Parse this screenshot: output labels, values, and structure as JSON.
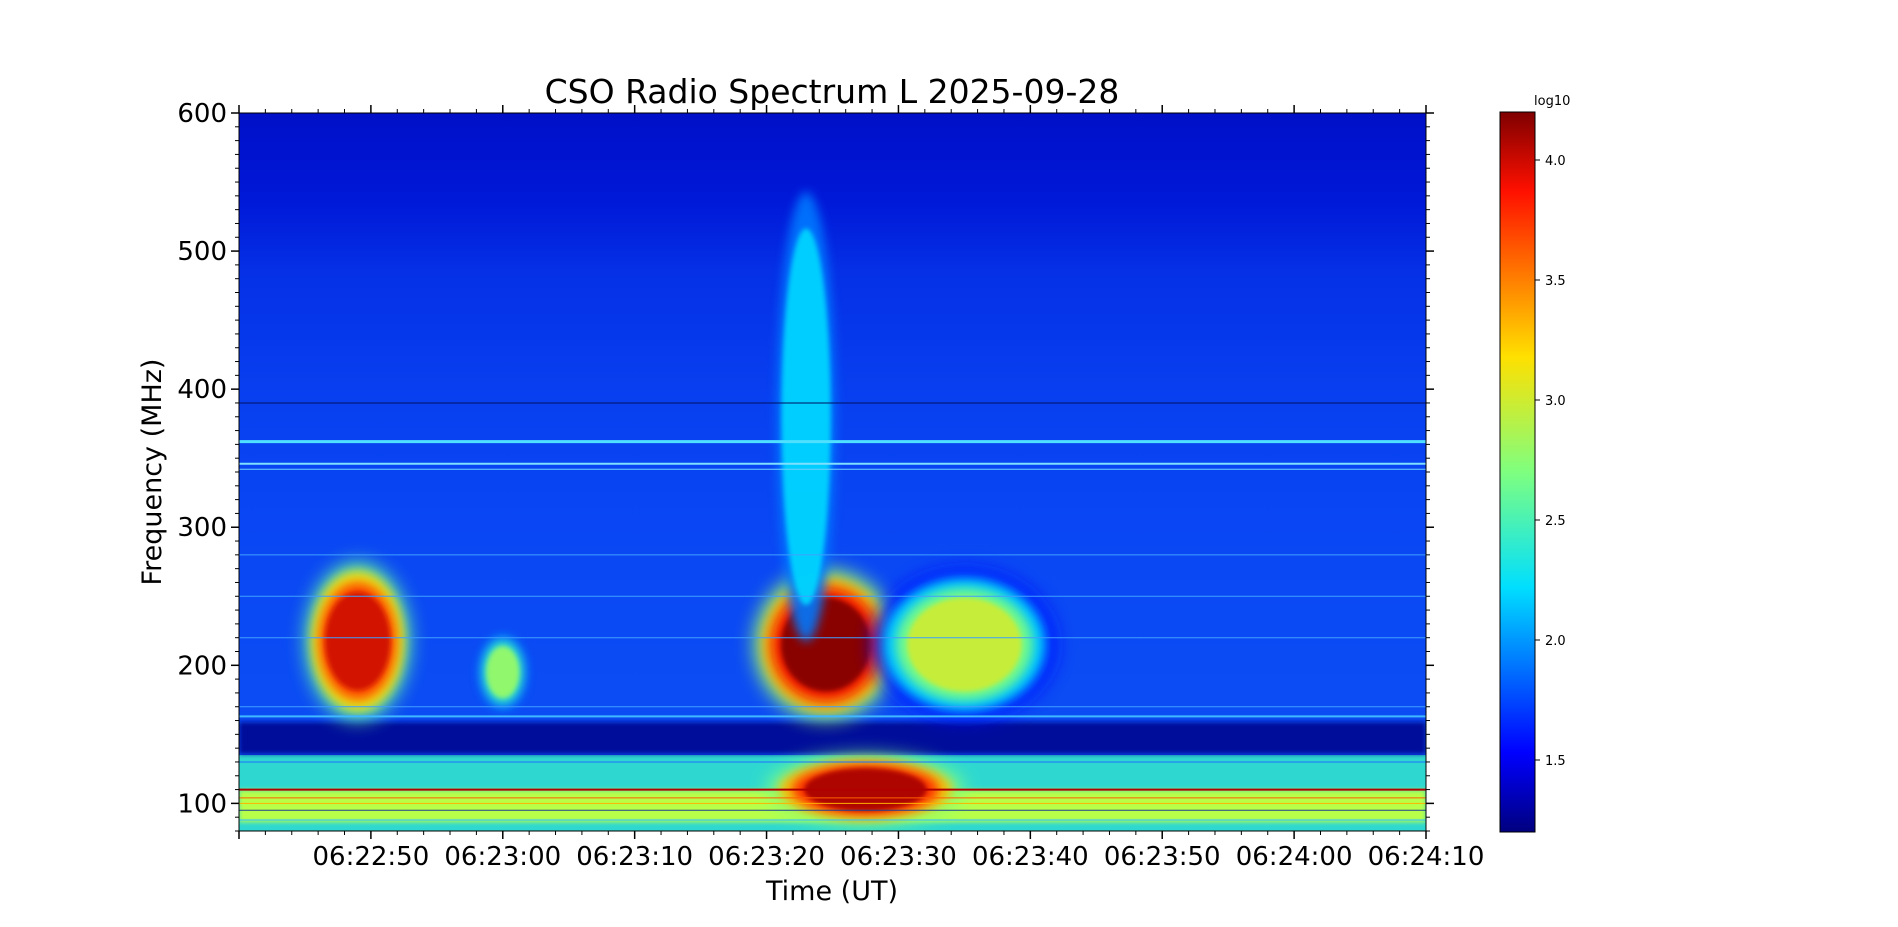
{
  "chart_data": {
    "type": "heatmap",
    "title": "CSO Radio Spectrum L 2025-09-28",
    "xlabel": "Time (UT)",
    "ylabel": "Frequency (MHz)",
    "x_ticks": [
      "06:22:50",
      "06:23:00",
      "06:23:10",
      "06:23:20",
      "06:23:30",
      "06:23:40",
      "06:23:50",
      "06:24:00",
      "06:24:10"
    ],
    "y_ticks": [
      100,
      200,
      300,
      400,
      500,
      600
    ],
    "xlim": [
      "06:22:40",
      "06:24:10"
    ],
    "ylim": [
      80,
      600
    ],
    "colormap": "jet",
    "colorbar": {
      "label": "log10",
      "ticks": [
        "1.5",
        "2.0",
        "2.5",
        "3.0",
        "3.5",
        "4.0"
      ],
      "range": [
        1.2,
        4.2
      ]
    },
    "bursts": [
      {
        "t_start": "06:22:45",
        "t_end": "06:22:53",
        "f_low": 160,
        "f_high": 275,
        "peak_log10": 4.0
      },
      {
        "t_start": "06:22:58",
        "t_end": "06:23:02",
        "f_low": 165,
        "f_high": 225,
        "peak_log10": 2.8
      },
      {
        "t_start": "06:23:19",
        "t_end": "06:23:30",
        "f_low": 160,
        "f_high": 270,
        "peak_log10": 4.2
      },
      {
        "t_start": "06:23:28",
        "t_end": "06:23:42",
        "f_low": 160,
        "f_high": 270,
        "peak_log10": 3.0
      },
      {
        "t_start": "06:23:20",
        "t_end": "06:23:35",
        "f_low": 85,
        "f_high": 135,
        "peak_log10": 4.1
      },
      {
        "t_start": "06:23:20",
        "t_end": "06:23:26",
        "f_low": 160,
        "f_high": 600,
        "peak_log10": 2.2
      }
    ],
    "grid": false
  }
}
